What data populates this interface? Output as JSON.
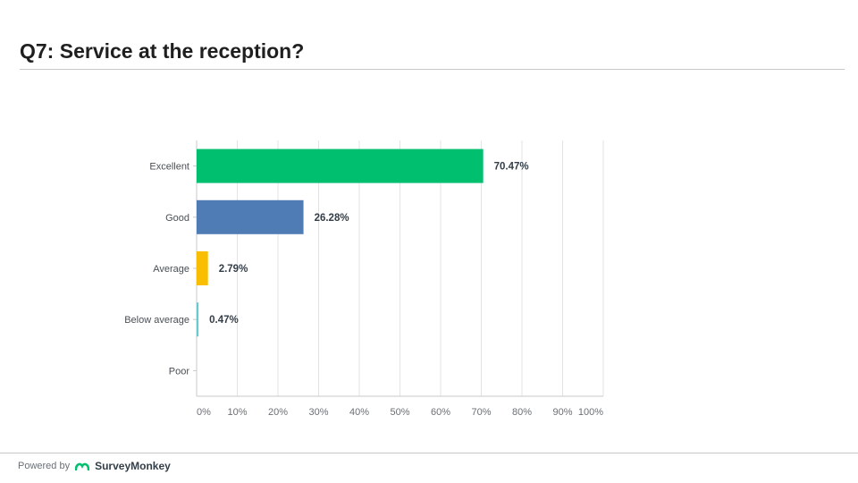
{
  "header": {
    "question_number": "Q7:",
    "question_text": "Service at the reception?"
  },
  "footer": {
    "powered_by": "Powered by",
    "brand": "SurveyMonkey"
  },
  "chart_data": {
    "type": "bar",
    "orientation": "horizontal",
    "categories": [
      "Excellent",
      "Good",
      "Average",
      "Below average",
      "Poor"
    ],
    "values": [
      70.47,
      26.28,
      2.79,
      0.47,
      0
    ],
    "value_labels": [
      "70.47%",
      "26.28%",
      "2.79%",
      "0.47%",
      ""
    ],
    "colors": [
      "#00bf6f",
      "#507cb6",
      "#f9be00",
      "#6bc8cd",
      "#999999"
    ],
    "x_ticks": [
      "0%",
      "10%",
      "20%",
      "30%",
      "40%",
      "50%",
      "60%",
      "70%",
      "80%",
      "90%",
      "100%"
    ],
    "xlim": [
      0,
      100
    ],
    "grid": true
  }
}
